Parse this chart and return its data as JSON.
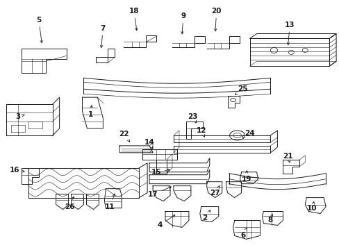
{
  "bg": "#ffffff",
  "lc": "#1a1a1a",
  "fig_w": 4.89,
  "fig_h": 3.6,
  "dpi": 100,
  "imgW": 489,
  "imgH": 360,
  "labels": [
    [
      "5",
      55,
      28,
      60,
      65
    ],
    [
      "7",
      148,
      40,
      145,
      72
    ],
    [
      "18",
      193,
      15,
      197,
      47
    ],
    [
      "9",
      264,
      22,
      262,
      52
    ],
    [
      "20",
      312,
      15,
      310,
      48
    ],
    [
      "25",
      350,
      128,
      338,
      137
    ],
    [
      "13",
      418,
      35,
      415,
      68
    ],
    [
      "3",
      25,
      168,
      35,
      165
    ],
    [
      "1",
      130,
      165,
      132,
      148
    ],
    [
      "22",
      178,
      193,
      187,
      205
    ],
    [
      "14",
      215,
      205,
      220,
      215
    ],
    [
      "23",
      278,
      168,
      283,
      178
    ],
    [
      "12",
      290,
      188,
      295,
      198
    ],
    [
      "24",
      360,
      192,
      348,
      198
    ],
    [
      "16",
      20,
      245,
      38,
      248
    ],
    [
      "26",
      100,
      298,
      107,
      280
    ],
    [
      "11",
      158,
      298,
      166,
      276
    ],
    [
      "15",
      225,
      248,
      248,
      244
    ],
    [
      "17",
      220,
      280,
      250,
      268
    ],
    [
      "27",
      310,
      278,
      318,
      265
    ],
    [
      "4",
      230,
      325,
      255,
      308
    ],
    [
      "2",
      295,
      315,
      305,
      300
    ],
    [
      "19",
      355,
      258,
      356,
      245
    ],
    [
      "21",
      415,
      225,
      418,
      235
    ],
    [
      "8",
      390,
      318,
      393,
      308
    ],
    [
      "6",
      350,
      340,
      356,
      328
    ],
    [
      "10",
      450,
      300,
      453,
      290
    ]
  ]
}
